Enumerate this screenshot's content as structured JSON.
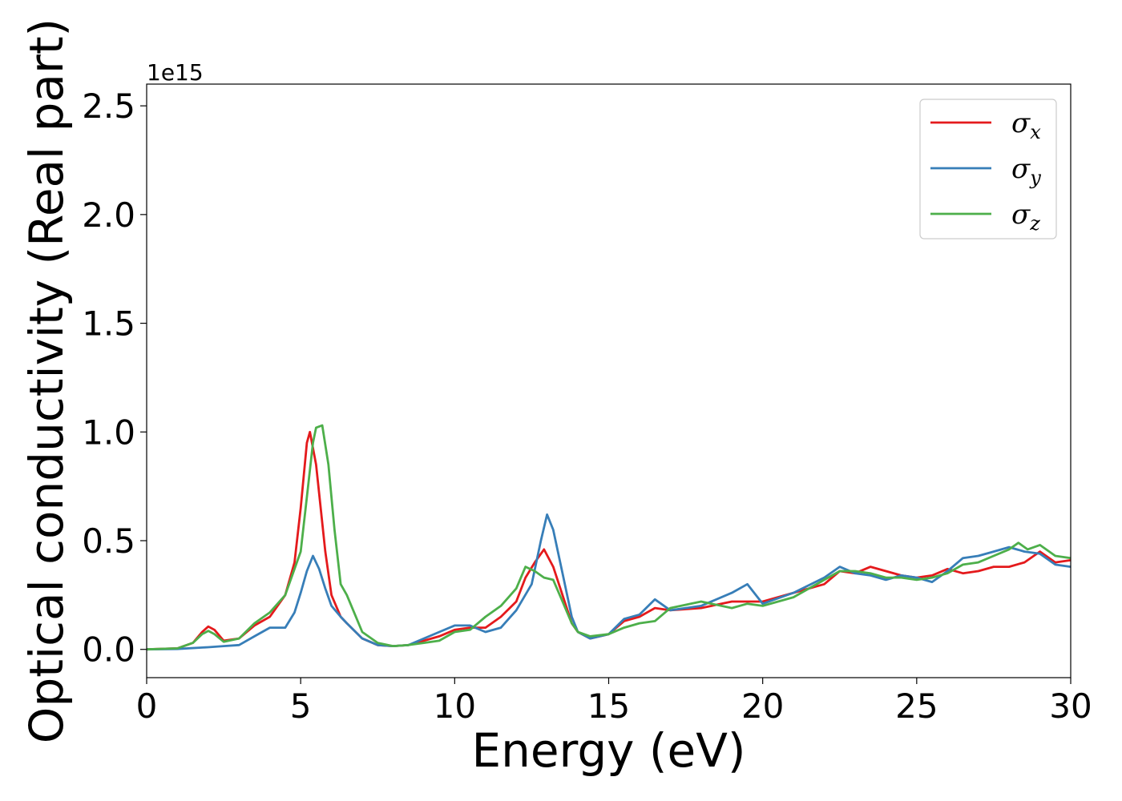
{
  "chart_data": {
    "type": "line",
    "xlabel": "Energy (eV)",
    "ylabel": "Optical conductivity (Real part)",
    "y_offset_label": "1e15",
    "xlim": [
      0,
      30
    ],
    "ylim": [
      -0.13,
      2.6
    ],
    "xticks": [
      0,
      5,
      10,
      15,
      20,
      25,
      30
    ],
    "yticks": [
      0.0,
      0.5,
      1.0,
      1.5,
      2.0,
      2.5
    ],
    "xtick_labels": [
      "0",
      "5",
      "10",
      "15",
      "20",
      "25",
      "30"
    ],
    "ytick_labels": [
      "0.0",
      "0.5",
      "1.0",
      "1.5",
      "2.0",
      "2.5"
    ],
    "grid": false,
    "legend_position": "top-right",
    "series": [
      {
        "name": "σx",
        "symbol": "σ",
        "sub": "x",
        "color": "#e41a1c",
        "x": [
          0,
          1,
          1.5,
          1.8,
          2.0,
          2.2,
          2.5,
          3,
          3.5,
          4,
          4.5,
          4.8,
          5.0,
          5.2,
          5.3,
          5.5,
          5.8,
          6.0,
          6.3,
          6.5,
          7,
          7.5,
          8,
          8.5,
          9,
          9.5,
          10,
          10.5,
          11,
          11.5,
          12,
          12.3,
          12.6,
          12.9,
          13.2,
          13.5,
          13.8,
          14,
          14.4,
          15,
          15.5,
          16,
          16.5,
          17,
          18,
          19,
          20,
          21,
          22,
          22.5,
          23,
          23.5,
          24,
          24.5,
          25,
          25.5,
          26,
          26.5,
          27,
          27.5,
          28,
          28.5,
          29,
          29.5,
          30
        ],
        "y": [
          0.0,
          0.005,
          0.03,
          0.08,
          0.105,
          0.09,
          0.04,
          0.05,
          0.11,
          0.15,
          0.25,
          0.4,
          0.65,
          0.95,
          1.0,
          0.85,
          0.45,
          0.25,
          0.15,
          0.12,
          0.05,
          0.02,
          0.015,
          0.02,
          0.04,
          0.06,
          0.09,
          0.1,
          0.1,
          0.15,
          0.22,
          0.33,
          0.4,
          0.46,
          0.38,
          0.25,
          0.12,
          0.08,
          0.05,
          0.07,
          0.13,
          0.15,
          0.19,
          0.18,
          0.19,
          0.22,
          0.22,
          0.26,
          0.3,
          0.36,
          0.35,
          0.38,
          0.36,
          0.34,
          0.33,
          0.34,
          0.37,
          0.35,
          0.36,
          0.38,
          0.38,
          0.4,
          0.45,
          0.4,
          0.41
        ]
      },
      {
        "name": "σy",
        "symbol": "σ",
        "sub": "y",
        "color": "#377eb8",
        "x": [
          0,
          1,
          2,
          2.5,
          3,
          3.5,
          4,
          4.5,
          4.8,
          5.0,
          5.2,
          5.4,
          5.6,
          5.8,
          6.0,
          6.3,
          6.5,
          7,
          7.5,
          8,
          8.5,
          9,
          9.5,
          10,
          10.5,
          11,
          11.5,
          12,
          12.5,
          12.8,
          13.0,
          13.2,
          13.5,
          13.8,
          14.0,
          14.4,
          15,
          15.5,
          16,
          16.5,
          17,
          18,
          19,
          19.5,
          20,
          21,
          22,
          22.5,
          23,
          23.5,
          24,
          24.5,
          25,
          25.5,
          26,
          26.5,
          27,
          27.5,
          28,
          28.5,
          29,
          29.5,
          30
        ],
        "y": [
          0.0,
          0.002,
          0.01,
          0.015,
          0.02,
          0.06,
          0.1,
          0.1,
          0.17,
          0.26,
          0.36,
          0.43,
          0.37,
          0.28,
          0.2,
          0.15,
          0.12,
          0.05,
          0.02,
          0.015,
          0.02,
          0.05,
          0.08,
          0.11,
          0.11,
          0.08,
          0.1,
          0.18,
          0.3,
          0.5,
          0.62,
          0.55,
          0.35,
          0.15,
          0.08,
          0.05,
          0.07,
          0.14,
          0.16,
          0.23,
          0.18,
          0.2,
          0.26,
          0.3,
          0.21,
          0.26,
          0.33,
          0.38,
          0.35,
          0.34,
          0.32,
          0.34,
          0.33,
          0.31,
          0.36,
          0.42,
          0.43,
          0.45,
          0.47,
          0.45,
          0.44,
          0.39,
          0.38
        ]
      },
      {
        "name": "σz",
        "symbol": "σ",
        "sub": "z",
        "color": "#4daf4a",
        "x": [
          0,
          1,
          1.5,
          1.8,
          2.0,
          2.2,
          2.5,
          3,
          3.5,
          4,
          4.5,
          5.0,
          5.2,
          5.4,
          5.5,
          5.7,
          5.9,
          6.1,
          6.3,
          6.5,
          7,
          7.5,
          8,
          8.5,
          9,
          9.5,
          10,
          10.5,
          11,
          11.5,
          12,
          12.3,
          12.6,
          12.9,
          13.2,
          13.5,
          13.8,
          14.0,
          14.4,
          15,
          15.5,
          16,
          16.5,
          17,
          18,
          19,
          19.5,
          20,
          21,
          22,
          22.5,
          23,
          23.5,
          24,
          24.5,
          25,
          25.5,
          26,
          26.5,
          27,
          27.5,
          28,
          28.3,
          28.6,
          29,
          29.5,
          30
        ],
        "y": [
          0.0,
          0.005,
          0.03,
          0.07,
          0.085,
          0.07,
          0.035,
          0.05,
          0.12,
          0.17,
          0.25,
          0.45,
          0.7,
          0.95,
          1.02,
          1.03,
          0.85,
          0.55,
          0.3,
          0.25,
          0.08,
          0.03,
          0.015,
          0.02,
          0.03,
          0.04,
          0.08,
          0.09,
          0.15,
          0.2,
          0.28,
          0.38,
          0.36,
          0.33,
          0.32,
          0.22,
          0.12,
          0.08,
          0.06,
          0.07,
          0.1,
          0.12,
          0.13,
          0.19,
          0.22,
          0.19,
          0.21,
          0.2,
          0.24,
          0.32,
          0.36,
          0.36,
          0.35,
          0.33,
          0.33,
          0.32,
          0.33,
          0.35,
          0.39,
          0.4,
          0.43,
          0.46,
          0.49,
          0.46,
          0.48,
          0.43,
          0.42
        ]
      }
    ]
  }
}
